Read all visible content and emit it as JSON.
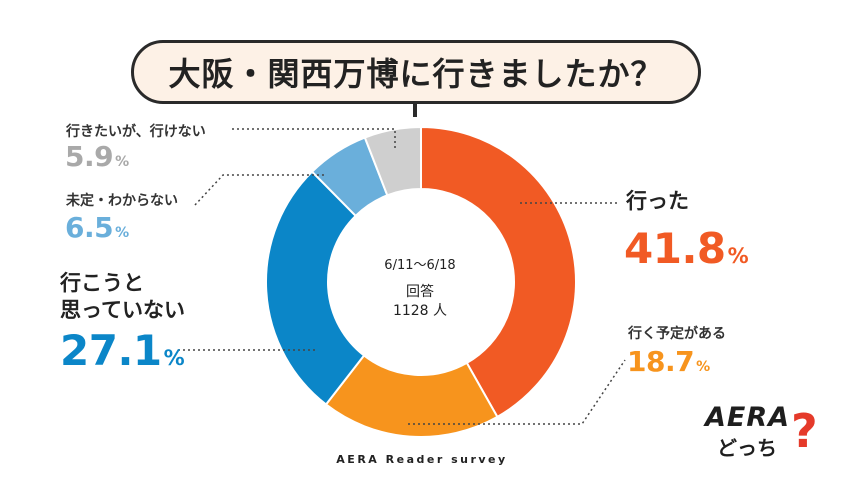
{
  "title": "大阪・関西万博に行きましたか？",
  "center": {
    "period": "6/11～6/18",
    "respondents_label": "回答",
    "respondents": "1128 人"
  },
  "footer": "AERA Reader survey",
  "logo": {
    "brand": "AERA",
    "tagline": "どっち",
    "mark": "?"
  },
  "colors": {
    "went": "#f15a24",
    "plan": "#f7941d",
    "no_intent": "#0b86c8",
    "undecided": "#6aafdb",
    "want_cannot": "#cfcfcf"
  },
  "chart_data": {
    "type": "pie",
    "title": "大阪・関西万博に行きましたか？",
    "unit": "%",
    "slices": [
      {
        "label": "行った",
        "value": 41.8
      },
      {
        "label": "行く予定がある",
        "value": 18.7
      },
      {
        "label": "行こうと思っていない",
        "value": 27.1
      },
      {
        "label": "未定・わからない",
        "value": 6.5
      },
      {
        "label": "行きたいが、行けない",
        "value": 5.9
      }
    ]
  },
  "labels": {
    "went": {
      "cat": "行った",
      "value": "41.8"
    },
    "plan": {
      "cat": "行く予定がある",
      "value": "18.7"
    },
    "no_intent": {
      "cat_line1": "行こうと",
      "cat_line2": "思っていない",
      "value": "27.1"
    },
    "undecided": {
      "cat": "未定・わからない",
      "value": "6.5"
    },
    "want_cannot": {
      "cat": "行きたいが、行けない",
      "value": "5.9"
    },
    "pct": "%"
  }
}
